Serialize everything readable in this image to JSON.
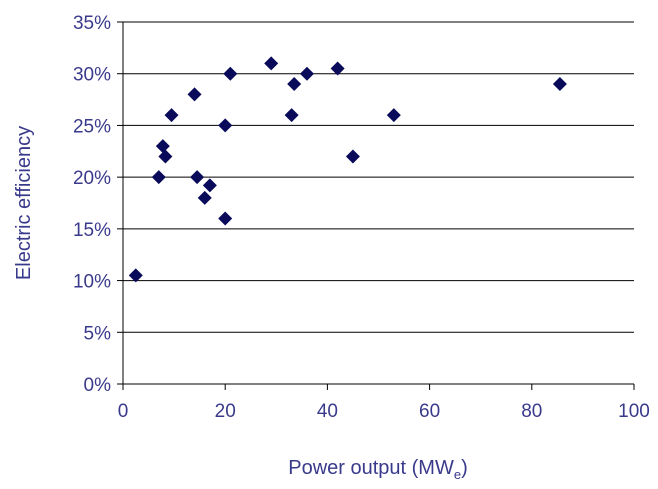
{
  "chart_data": {
    "type": "scatter",
    "title": "",
    "xlabel": "Power output (MW",
    "xlabel_subscript": "e",
    "xlabel_suffix": ")",
    "ylabel": "Electric efficiency",
    "xlim": [
      0,
      100
    ],
    "ylim": [
      0,
      35
    ],
    "x_ticks": [
      0,
      20,
      40,
      60,
      80,
      100
    ],
    "x_tick_labels": [
      "0",
      "20",
      "40",
      "60",
      "80",
      "100"
    ],
    "y_ticks": [
      0,
      5,
      10,
      15,
      20,
      25,
      30,
      35
    ],
    "y_tick_labels": [
      "0%",
      "5%",
      "10%",
      "15%",
      "20%",
      "25%",
      "30%",
      "35%"
    ],
    "grid": "horizontal",
    "legend": "none",
    "marker": "diamond",
    "colors": {
      "marker": "#0a0a5a",
      "text": "#3a3a8c",
      "axis": "#000000",
      "grid": "#000000"
    },
    "series": [
      {
        "points": [
          {
            "x": 2.5,
            "y": 10.5
          },
          {
            "x": 7,
            "y": 20
          },
          {
            "x": 7.8,
            "y": 23
          },
          {
            "x": 8.3,
            "y": 22
          },
          {
            "x": 9.5,
            "y": 26
          },
          {
            "x": 14,
            "y": 28
          },
          {
            "x": 14.5,
            "y": 20
          },
          {
            "x": 16,
            "y": 18
          },
          {
            "x": 17,
            "y": 19.2
          },
          {
            "x": 20,
            "y": 25
          },
          {
            "x": 20,
            "y": 16
          },
          {
            "x": 21,
            "y": 30
          },
          {
            "x": 29,
            "y": 31
          },
          {
            "x": 33,
            "y": 26
          },
          {
            "x": 33.5,
            "y": 29
          },
          {
            "x": 36,
            "y": 30
          },
          {
            "x": 42,
            "y": 30.5
          },
          {
            "x": 45,
            "y": 22
          },
          {
            "x": 53,
            "y": 26
          },
          {
            "x": 85.5,
            "y": 29
          }
        ]
      }
    ]
  }
}
